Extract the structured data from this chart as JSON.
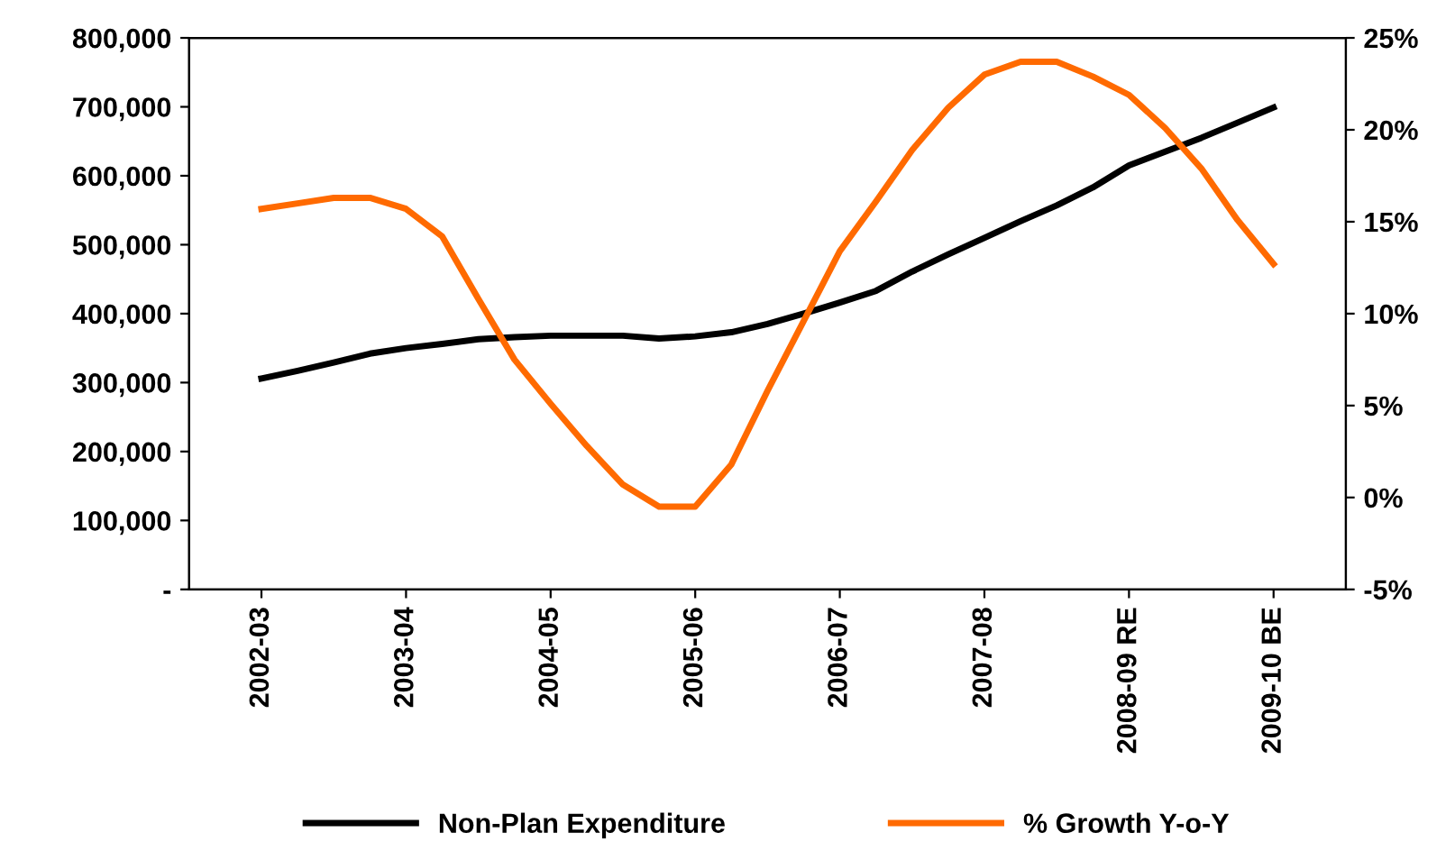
{
  "chart_data": {
    "type": "line",
    "categories": [
      "2002-03",
      null,
      null,
      null,
      "2003-04",
      null,
      null,
      null,
      "2004-05",
      null,
      null,
      null,
      "2005-06",
      null,
      null,
      null,
      "2006-07",
      null,
      null,
      null,
      "2007-08",
      null,
      null,
      null,
      "2008-09 RE",
      null,
      null,
      null,
      "2009-10 BE"
    ],
    "series": [
      {
        "name": "Non-Plan Expenditure",
        "color": "#000000",
        "values": [
          306000,
          317000,
          329000,
          342000,
          350000,
          356000,
          363000,
          366000,
          368000,
          368000,
          368000,
          364000,
          367000,
          373000,
          385000,
          400000,
          416000,
          433000,
          461000,
          486000,
          510000,
          534000,
          557000,
          583000,
          615000,
          635000,
          655000,
          677000,
          699000
        ]
      },
      {
        "name": "% Growth Y-o-Y",
        "color": "#ff6a00",
        "axis": "y2",
        "values": [
          15.7,
          16.0,
          16.3,
          16.3,
          15.7,
          14.2,
          10.8,
          7.5,
          5.1,
          2.8,
          0.7,
          -0.5,
          -0.5,
          1.8,
          5.8,
          9.6,
          13.4,
          16.1,
          18.9,
          21.2,
          23.0,
          23.7,
          23.7,
          22.9,
          21.9,
          20.1,
          17.9,
          15.1,
          12.7
        ]
      }
    ],
    "ylim": [
      0,
      800000
    ],
    "yticks": [
      {
        "value": 0,
        "label": "-"
      },
      {
        "value": 100000,
        "label": "100,000"
      },
      {
        "value": 200000,
        "label": "200,000"
      },
      {
        "value": 300000,
        "label": "300,000"
      },
      {
        "value": 400000,
        "label": "400,000"
      },
      {
        "value": 500000,
        "label": "500,000"
      },
      {
        "value": 600000,
        "label": "600,000"
      },
      {
        "value": 700000,
        "label": "700,000"
      },
      {
        "value": 800000,
        "label": "800,000"
      }
    ],
    "y2lim": [
      -5,
      25
    ],
    "y2ticks": [
      {
        "value": -5,
        "label": "-5%"
      },
      {
        "value": 0,
        "label": "0%"
      },
      {
        "value": 5,
        "label": "5%"
      },
      {
        "value": 10,
        "label": "10%"
      },
      {
        "value": 15,
        "label": "15%"
      },
      {
        "value": 20,
        "label": "20%"
      },
      {
        "value": 25,
        "label": "25%"
      }
    ],
    "grid": false,
    "legend": "bottom",
    "marker": "none",
    "line_style": "solid"
  }
}
